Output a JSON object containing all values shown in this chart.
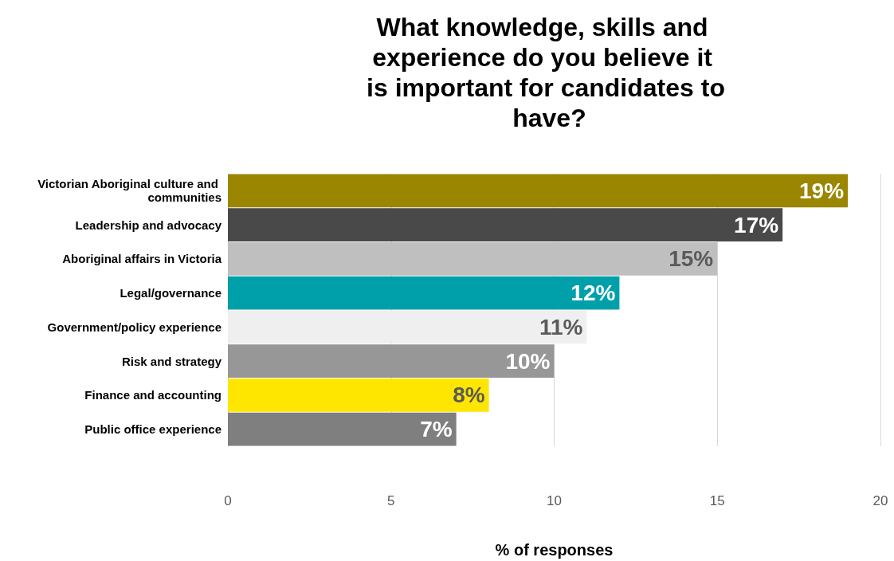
{
  "chart_data": {
    "type": "bar",
    "orientation": "horizontal",
    "title": "What knowledge, skills and experience do you believe it is important for candidates to have?",
    "xlabel": "% of responses",
    "categories": [
      "Victorian Aboriginal culture and communities",
      "Leadership and advocacy",
      "Aboriginal affairs in Victoria",
      "Legal/governance",
      "Government/policy experience",
      "Risk and strategy",
      "Finance and accounting",
      "Public office experience"
    ],
    "values": [
      19,
      17,
      15,
      12,
      11,
      10,
      8,
      7
    ],
    "colors": [
      "#9a8600",
      "#494949",
      "#bfbfbf",
      "#00a0aa",
      "#efefef",
      "#979797",
      "#ffe600",
      "#7f7f7f"
    ],
    "value_labels": [
      "19%",
      "17%",
      "15%",
      "12%",
      "11%",
      "10%",
      "8%",
      "7%"
    ],
    "xlim": [
      0,
      20
    ],
    "xticks": [
      0,
      5,
      10,
      15,
      20
    ],
    "grid": "x",
    "legend": false
  }
}
